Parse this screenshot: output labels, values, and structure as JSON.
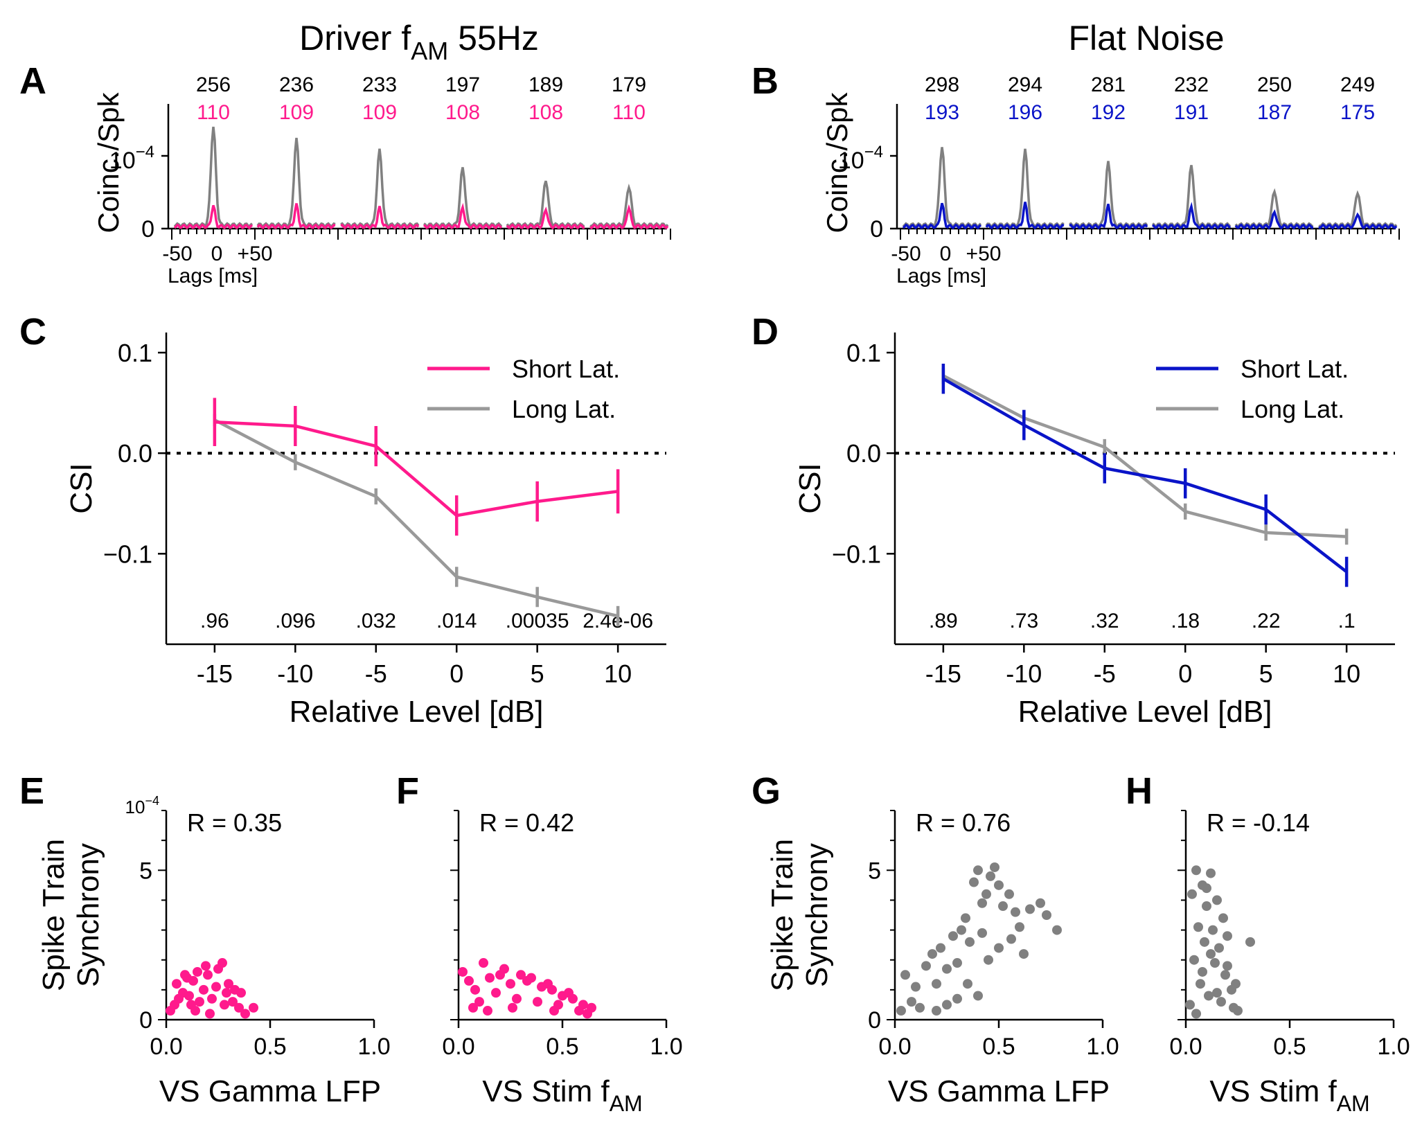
{
  "column_titles": {
    "left": "Driver f",
    "left_sub": "AM",
    "left_suffix": " 55Hz",
    "right": "Flat Noise"
  },
  "panel_letters": [
    "A",
    "B",
    "C",
    "D",
    "E",
    "F",
    "G",
    "H"
  ],
  "colors": {
    "driver_short": "#ff1a8c",
    "flat_short": "#0a14c8",
    "long": "#999999",
    "ccg_long": "#808080",
    "scatter_gray": "#808080"
  },
  "chart_data": [
    {
      "id": "A",
      "type": "line",
      "ylabel": "Coinc./Spk",
      "ytick_labels": [
        "0"
      ],
      "y_exponent": "10",
      "y_exponent_power": "−4",
      "xtick_labels": [
        "-50",
        "0",
        "+50"
      ],
      "xlabel": "Lags [ms]",
      "counts_top": [
        "256",
        "236",
        "233",
        "197",
        "189",
        "179"
      ],
      "counts_bottom": [
        "110",
        "109",
        "109",
        "108",
        "108",
        "110"
      ],
      "series": [
        {
          "name": "Long Lat.",
          "peaks": [
            1.35,
            1.18,
            1.03,
            0.79,
            0.62,
            0.53
          ],
          "baseline": 0.05
        },
        {
          "name": "Short Lat.",
          "peaks": [
            0.29,
            0.3,
            0.26,
            0.26,
            0.24,
            0.27
          ],
          "baseline": 0.03
        }
      ]
    },
    {
      "id": "B",
      "type": "line",
      "ylabel": "Coinc./Spk",
      "ytick_labels": [
        "0"
      ],
      "y_exponent": "10",
      "y_exponent_power": "−4",
      "xtick_labels": [
        "-50",
        "0",
        "+50"
      ],
      "xlabel": "Lags [ms]",
      "counts_top": [
        "298",
        "294",
        "281",
        "232",
        "250",
        "249"
      ],
      "counts_bottom": [
        "193",
        "196",
        "192",
        "191",
        "187",
        "175"
      ],
      "series": [
        {
          "name": "Long Lat.",
          "peaks": [
            1.07,
            1.03,
            0.86,
            0.82,
            0.47,
            0.45
          ],
          "baseline": 0.05
        },
        {
          "name": "Short Lat.",
          "peaks": [
            0.32,
            0.32,
            0.29,
            0.27,
            0.21,
            0.18
          ],
          "baseline": 0.03
        }
      ]
    },
    {
      "id": "C",
      "type": "line",
      "xlabel": "Relative Level [dB]",
      "ylabel": "CSI",
      "x": [
        -15,
        -10,
        -5,
        0,
        5,
        10
      ],
      "xtick_labels": [
        "-15",
        "-10",
        "-5",
        "0",
        "5",
        "10"
      ],
      "ytick_labels": [
        "0.1",
        "0.0",
        "−0.1"
      ],
      "ylim": [
        -0.19,
        0.12
      ],
      "legend": "top-right",
      "pvalues": [
        ".96",
        ".096",
        ".032",
        ".014",
        ".00035",
        "2.4e-06"
      ],
      "series": [
        {
          "name": "Short Lat.",
          "values": [
            0.031,
            0.027,
            0.007,
            -0.062,
            -0.048,
            -0.038
          ],
          "err": [
            0.024,
            0.02,
            0.02,
            0.02,
            0.02,
            0.022
          ]
        },
        {
          "name": "Long Lat.",
          "values": [
            0.033,
            -0.009,
            -0.043,
            -0.123,
            -0.143,
            -0.162
          ],
          "err": [
            0.006,
            0.008,
            0.008,
            0.01,
            0.01,
            0.01
          ]
        }
      ]
    },
    {
      "id": "D",
      "type": "line",
      "xlabel": "Relative Level [dB]",
      "ylabel": "CSI",
      "x": [
        -15,
        -10,
        -5,
        0,
        5,
        10
      ],
      "xtick_labels": [
        "-15",
        "-10",
        "-5",
        "0",
        "5",
        "10"
      ],
      "ytick_labels": [
        "0.1",
        "0.0",
        "−0.1"
      ],
      "ylim": [
        -0.19,
        0.12
      ],
      "legend": "top-right",
      "pvalues": [
        ".89",
        ".73",
        ".32",
        ".18",
        ".22",
        ".1"
      ],
      "series": [
        {
          "name": "Short Lat.",
          "values": [
            0.074,
            0.028,
            -0.015,
            -0.03,
            -0.056,
            -0.118
          ],
          "err": [
            0.015,
            0.015,
            0.015,
            0.015,
            0.015,
            0.015
          ]
        },
        {
          "name": "Long Lat.",
          "values": [
            0.077,
            0.035,
            0.006,
            -0.058,
            -0.079,
            -0.083
          ],
          "err": [
            0.008,
            0.008,
            0.008,
            0.008,
            0.008,
            0.008
          ]
        }
      ]
    },
    {
      "id": "E",
      "type": "scatter",
      "xlabel": "VS Gamma LFP",
      "ylabel": [
        "Spike Train",
        "Synchrony"
      ],
      "annotation": "R = 0.35",
      "y_exponent": "10",
      "y_exponent_power": "−4",
      "xlim": [
        0,
        1
      ],
      "ylim": [
        0,
        7
      ],
      "xtick_labels": [
        "0.0",
        "0.5",
        "1.0"
      ],
      "ytick_labels": [
        "0",
        "5"
      ],
      "points": [
        [
          0.02,
          0.3
        ],
        [
          0.05,
          1.2
        ],
        [
          0.08,
          0.9
        ],
        [
          0.1,
          1.4
        ],
        [
          0.12,
          0.5
        ],
        [
          0.15,
          1.6
        ],
        [
          0.18,
          1.0
        ],
        [
          0.2,
          1.5
        ],
        [
          0.22,
          0.7
        ],
        [
          0.25,
          1.7
        ],
        [
          0.27,
          1.9
        ],
        [
          0.3,
          1.2
        ],
        [
          0.32,
          0.6
        ],
        [
          0.35,
          0.4
        ],
        [
          0.38,
          0.2
        ],
        [
          0.42,
          0.4
        ],
        [
          0.06,
          0.7
        ],
        [
          0.14,
          0.3
        ],
        [
          0.24,
          1.1
        ],
        [
          0.29,
          0.9
        ],
        [
          0.33,
          1.0
        ],
        [
          0.19,
          1.8
        ],
        [
          0.11,
          0.8
        ],
        [
          0.04,
          0.5
        ],
        [
          0.16,
          0.6
        ],
        [
          0.28,
          0.5
        ],
        [
          0.36,
          0.9
        ],
        [
          0.09,
          1.5
        ],
        [
          0.21,
          0.2
        ],
        [
          0.13,
          1.3
        ]
      ]
    },
    {
      "id": "F",
      "type": "scatter",
      "xlabel": "VS Stim f",
      "xlabel_sub": "AM",
      "annotation": "R = 0.42",
      "xlim": [
        0,
        1
      ],
      "ylim": [
        0,
        7
      ],
      "xtick_labels": [
        "0.0",
        "0.5",
        "1.0"
      ],
      "points": [
        [
          0.02,
          1.6
        ],
        [
          0.05,
          1.3
        ],
        [
          0.08,
          1.0
        ],
        [
          0.12,
          1.9
        ],
        [
          0.15,
          1.4
        ],
        [
          0.2,
          1.5
        ],
        [
          0.25,
          1.2
        ],
        [
          0.3,
          1.5
        ],
        [
          0.35,
          1.4
        ],
        [
          0.4,
          1.1
        ],
        [
          0.45,
          1.0
        ],
        [
          0.5,
          0.8
        ],
        [
          0.55,
          0.7
        ],
        [
          0.6,
          0.5
        ],
        [
          0.64,
          0.4
        ],
        [
          0.1,
          0.6
        ],
        [
          0.18,
          0.9
        ],
        [
          0.28,
          0.7
        ],
        [
          0.38,
          0.6
        ],
        [
          0.48,
          0.5
        ],
        [
          0.58,
          0.3
        ],
        [
          0.62,
          0.2
        ],
        [
          0.22,
          1.7
        ],
        [
          0.33,
          1.3
        ],
        [
          0.43,
          1.2
        ],
        [
          0.53,
          0.9
        ],
        [
          0.07,
          0.4
        ],
        [
          0.14,
          0.3
        ],
        [
          0.26,
          0.4
        ],
        [
          0.46,
          0.3
        ]
      ]
    },
    {
      "id": "G",
      "type": "scatter",
      "xlabel": "VS Gamma LFP",
      "ylabel": [
        "Spike Train",
        "Synchrony"
      ],
      "annotation": "R = 0.76",
      "xlim": [
        0,
        1
      ],
      "ylim": [
        0,
        7
      ],
      "xtick_labels": [
        "0.0",
        "0.5",
        "1.0"
      ],
      "ytick_labels": [
        "0",
        "5"
      ],
      "points": [
        [
          0.03,
          0.3
        ],
        [
          0.05,
          1.5
        ],
        [
          0.08,
          0.6
        ],
        [
          0.1,
          1.1
        ],
        [
          0.12,
          0.4
        ],
        [
          0.15,
          1.8
        ],
        [
          0.18,
          2.2
        ],
        [
          0.2,
          1.2
        ],
        [
          0.22,
          2.4
        ],
        [
          0.25,
          1.7
        ],
        [
          0.28,
          2.8
        ],
        [
          0.3,
          1.9
        ],
        [
          0.32,
          3.0
        ],
        [
          0.34,
          3.4
        ],
        [
          0.36,
          2.6
        ],
        [
          0.38,
          4.6
        ],
        [
          0.4,
          5.0
        ],
        [
          0.42,
          3.9
        ],
        [
          0.44,
          4.2
        ],
        [
          0.46,
          4.8
        ],
        [
          0.48,
          5.1
        ],
        [
          0.5,
          4.5
        ],
        [
          0.52,
          3.8
        ],
        [
          0.55,
          4.2
        ],
        [
          0.58,
          3.6
        ],
        [
          0.6,
          3.1
        ],
        [
          0.65,
          3.7
        ],
        [
          0.7,
          3.9
        ],
        [
          0.73,
          3.5
        ],
        [
          0.78,
          3.0
        ],
        [
          0.35,
          1.2
        ],
        [
          0.4,
          0.8
        ],
        [
          0.45,
          2.0
        ],
        [
          0.5,
          2.4
        ],
        [
          0.3,
          0.7
        ],
        [
          0.25,
          0.5
        ],
        [
          0.2,
          0.3
        ],
        [
          0.42,
          2.9
        ],
        [
          0.56,
          2.7
        ],
        [
          0.62,
          2.2
        ]
      ]
    },
    {
      "id": "H",
      "type": "scatter",
      "xlabel": "VS Stim f",
      "xlabel_sub": "AM",
      "annotation": "R = -0.14",
      "xlim": [
        0,
        1
      ],
      "ylim": [
        0,
        7
      ],
      "xtick_labels": [
        "0.0",
        "0.5",
        "1.0"
      ],
      "points": [
        [
          0.02,
          0.5
        ],
        [
          0.03,
          4.2
        ],
        [
          0.04,
          2.0
        ],
        [
          0.05,
          5.0
        ],
        [
          0.06,
          3.1
        ],
        [
          0.07,
          1.2
        ],
        [
          0.08,
          4.5
        ],
        [
          0.09,
          2.6
        ],
        [
          0.1,
          3.8
        ],
        [
          0.11,
          0.8
        ],
        [
          0.12,
          4.9
        ],
        [
          0.13,
          3.0
        ],
        [
          0.14,
          1.9
        ],
        [
          0.15,
          4.0
        ],
        [
          0.16,
          2.4
        ],
        [
          0.17,
          0.6
        ],
        [
          0.18,
          3.4
        ],
        [
          0.19,
          1.5
        ],
        [
          0.2,
          2.8
        ],
        [
          0.22,
          1.0
        ],
        [
          0.23,
          0.4
        ],
        [
          0.24,
          1.2
        ],
        [
          0.25,
          0.3
        ],
        [
          0.31,
          2.6
        ],
        [
          0.05,
          0.2
        ],
        [
          0.08,
          1.6
        ],
        [
          0.12,
          2.2
        ],
        [
          0.15,
          0.9
        ],
        [
          0.2,
          1.8
        ],
        [
          0.1,
          4.4
        ]
      ]
    }
  ]
}
